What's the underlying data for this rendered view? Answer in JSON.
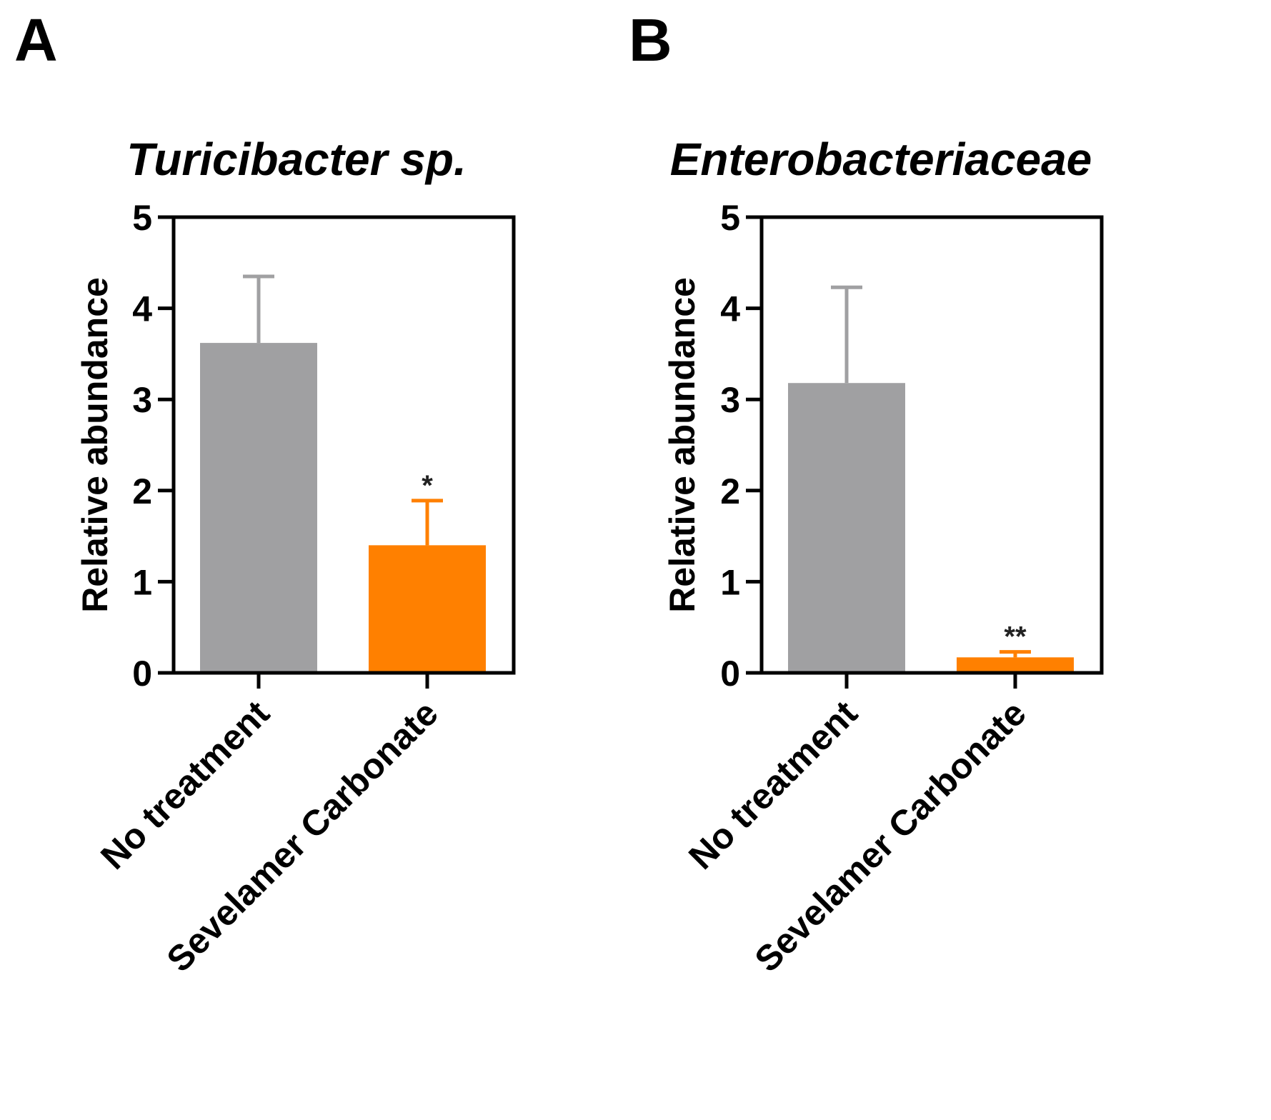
{
  "colors": {
    "no_treatment": "#a0a0a2",
    "sevelamer": "#ff8000",
    "axis": "#000000"
  },
  "chart_data": [
    {
      "panel": "A",
      "type": "bar",
      "title": "Turicibacter sp.",
      "ylabel": "Relative abundance",
      "xlabel": "",
      "ylim": [
        0,
        5
      ],
      "yticks": [
        "0",
        "1",
        "2",
        "3",
        "4",
        "5"
      ],
      "categories": [
        "No treatment",
        "Sevelamer Carbonate"
      ],
      "values": [
        3.62,
        1.4
      ],
      "errors": [
        0.73,
        0.49
      ],
      "significance": [
        "",
        "*"
      ]
    },
    {
      "panel": "B",
      "type": "bar",
      "title": "Enterobacteriaceae",
      "ylabel": "Relative abundance",
      "xlabel": "",
      "ylim": [
        0,
        5
      ],
      "yticks": [
        "0",
        "1",
        "2",
        "3",
        "4",
        "5"
      ],
      "categories": [
        "No treatment",
        "Sevelamer Carbonate"
      ],
      "values": [
        3.18,
        0.17
      ],
      "errors": [
        1.05,
        0.06
      ],
      "significance": [
        "",
        "**"
      ]
    }
  ]
}
